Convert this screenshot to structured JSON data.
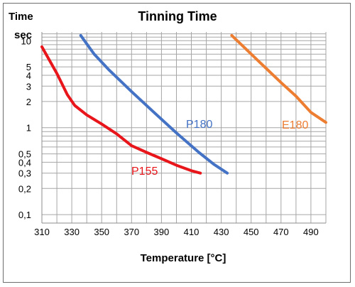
{
  "chart_data": {
    "type": "line",
    "title": "Tinning Time",
    "ylabel_top": "Time",
    "ylabel_unit": "sec",
    "xlabel": "Temperature [°C]",
    "xlim": [
      310,
      500
    ],
    "ylim": [
      0.1,
      10
    ],
    "yscale": "log",
    "grid": true,
    "x_ticks": [
      310,
      330,
      350,
      370,
      390,
      410,
      430,
      450,
      470,
      490
    ],
    "x_tick_labels": [
      "310",
      "330",
      "350",
      "370",
      "390",
      "410",
      "430",
      "450",
      "470",
      "490"
    ],
    "y_ticks": [
      10,
      5,
      4,
      3,
      2,
      1,
      0.5,
      0.4,
      0.3,
      0.2,
      0.1
    ],
    "y_tick_labels": [
      "10",
      "5",
      "4",
      "3",
      "2",
      "1",
      "0,5",
      "0,4",
      "0,3",
      "0,2",
      "0,1"
    ],
    "series": [
      {
        "name": "P155",
        "color": "#e8151b",
        "points": [
          [
            310,
            8.5
          ],
          [
            320,
            4.2
          ],
          [
            327,
            2.4
          ],
          [
            332,
            1.8
          ],
          [
            340,
            1.4
          ],
          [
            350,
            1.1
          ],
          [
            360,
            0.85
          ],
          [
            370,
            0.62
          ],
          [
            380,
            0.52
          ],
          [
            390,
            0.44
          ],
          [
            400,
            0.37
          ],
          [
            410,
            0.32
          ],
          [
            416,
            0.3
          ]
        ]
      },
      {
        "name": "P180",
        "color": "#4472c4",
        "points": [
          [
            336,
            11.5
          ],
          [
            345,
            7.0
          ],
          [
            355,
            4.6
          ],
          [
            370,
            2.6
          ],
          [
            385,
            1.5
          ],
          [
            400,
            0.87
          ],
          [
            415,
            0.52
          ],
          [
            425,
            0.38
          ],
          [
            434,
            0.3
          ]
        ]
      },
      {
        "name": "E180",
        "color": "#ed7d31",
        "points": [
          [
            437,
            11.5
          ],
          [
            445,
            8.5
          ],
          [
            455,
            5.8
          ],
          [
            470,
            3.3
          ],
          [
            480,
            2.3
          ],
          [
            490,
            1.5
          ],
          [
            500,
            1.15
          ]
        ]
      }
    ]
  }
}
